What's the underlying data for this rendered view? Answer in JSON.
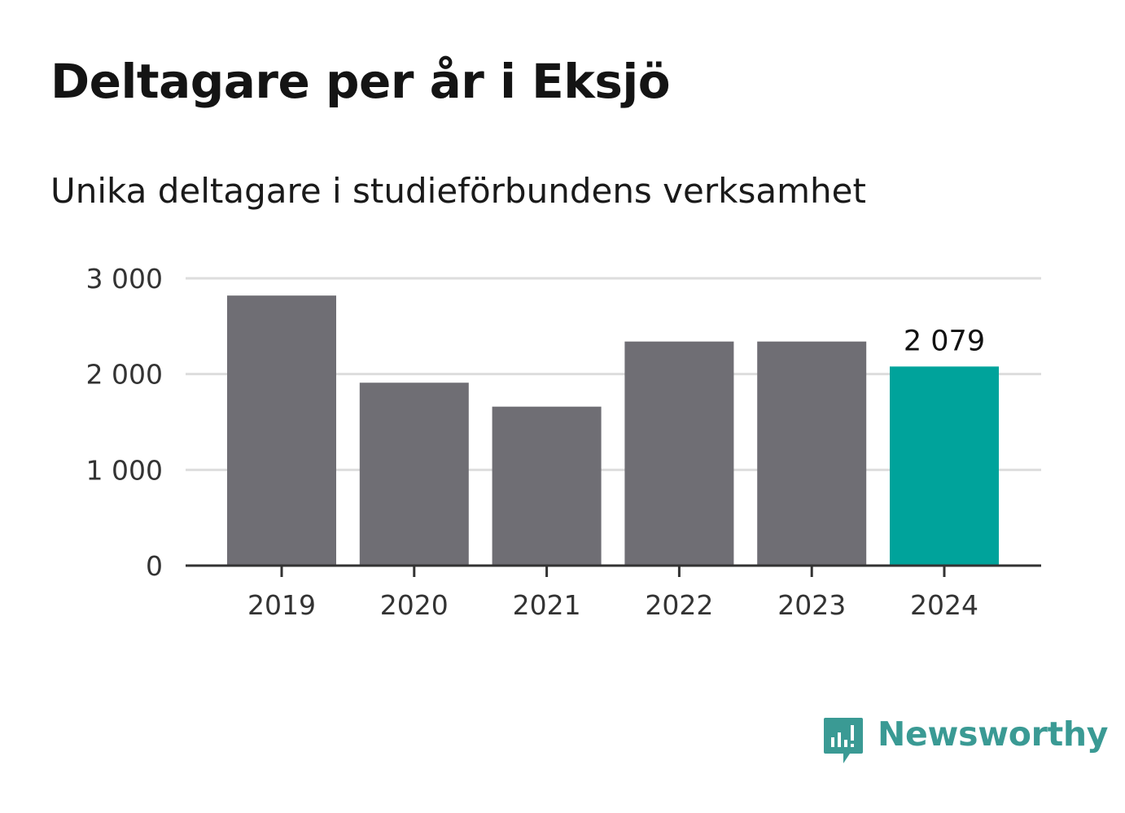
{
  "title": "Deltagare per år i Eksjö",
  "subtitle": "Unika deltagare i studieförbundens verksamhet",
  "brand": {
    "name": "Newsworthy",
    "color": "#3a9a94",
    "icon": "newsworthy-logo-icon"
  },
  "colors": {
    "bar": "#6f6e74",
    "highlight": "#00a39b",
    "grid": "#dddddd",
    "axis": "#333333"
  },
  "chart_data": {
    "type": "bar",
    "categories": [
      "2019",
      "2020",
      "2021",
      "2022",
      "2023",
      "2024"
    ],
    "values": [
      2820,
      1910,
      1660,
      2340,
      2340,
      2079
    ],
    "highlight_index": 5,
    "data_labels": [
      {
        "index": 5,
        "text": "2 079"
      }
    ],
    "title": "Deltagare per år i Eksjö",
    "subtitle": "Unika deltagare i studieförbundens verksamhet",
    "ylim": [
      0,
      3000
    ],
    "yticks": [
      0,
      1000,
      2000,
      3000
    ],
    "ytick_labels": [
      "0",
      "1 000",
      "2 000",
      "3 000"
    ],
    "grid": true,
    "legend": "none"
  }
}
